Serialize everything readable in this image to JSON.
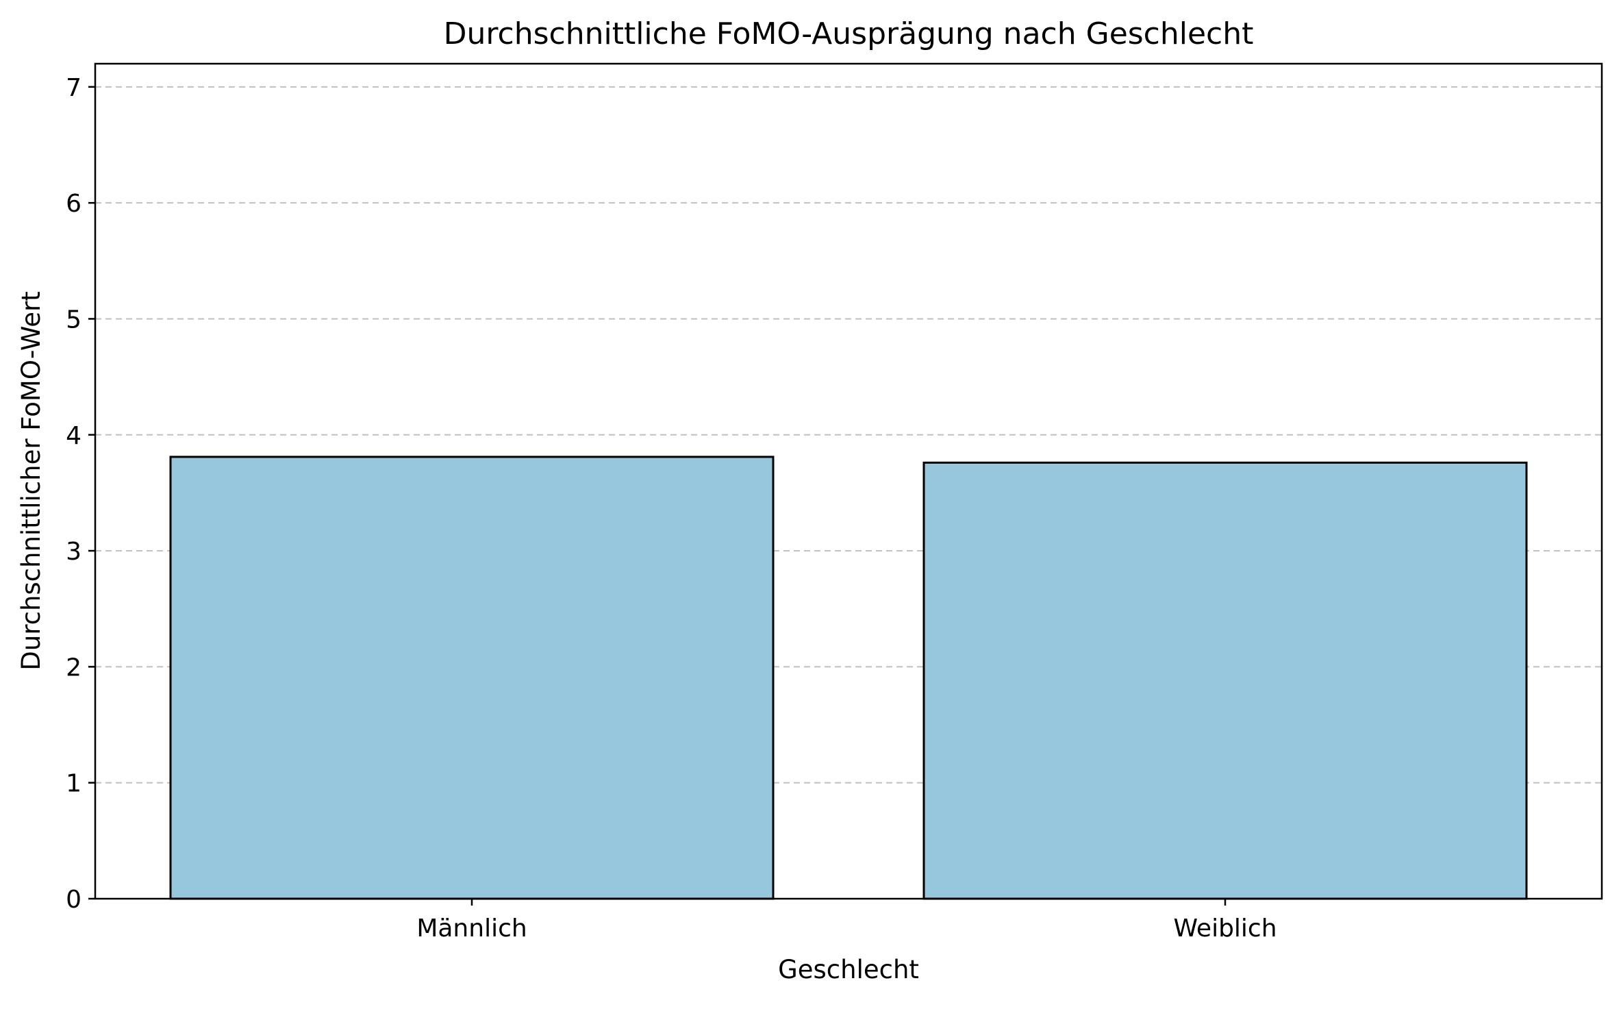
{
  "chart_data": {
    "type": "bar",
    "title": "Durchschnittliche FoMO-Ausprägung nach Geschlecht",
    "xlabel": "Geschlecht",
    "ylabel": "Durchschnittlicher FoMO-Wert",
    "categories": [
      "Männlich",
      "Weiblich"
    ],
    "values": [
      3.81,
      3.76
    ],
    "ylim": [
      0,
      7.2
    ],
    "yticks": [
      "0",
      "1",
      "2",
      "3",
      "4",
      "5",
      "6",
      "7"
    ],
    "grid": "horizontal dashed",
    "legend": "none",
    "colors": {
      "bar_fill": "#96c7dd",
      "bar_edge": "#000000",
      "grid": "#c0c0c0",
      "axis": "#000000"
    }
  }
}
